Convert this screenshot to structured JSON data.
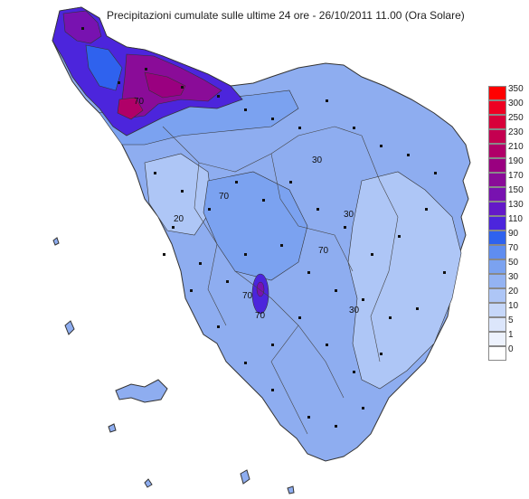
{
  "map": {
    "title": "Precipitazioni cumulate sulle ultime 24 ore - 26/10/2011 11.00 (Ora Solare)",
    "contour_labels": [
      "70",
      "20",
      "70",
      "30",
      "30",
      "70",
      "70",
      "70",
      "30"
    ]
  },
  "legend": {
    "classes": [
      {
        "label": "350",
        "color": "#ff0000"
      },
      {
        "label": "300",
        "color": "#ee0022"
      },
      {
        "label": "250",
        "color": "#d8003a"
      },
      {
        "label": "230",
        "color": "#c40050"
      },
      {
        "label": "210",
        "color": "#b00068"
      },
      {
        "label": "190",
        "color": "#9a0080"
      },
      {
        "label": "170",
        "color": "#8a0c98"
      },
      {
        "label": "150",
        "color": "#7812b0"
      },
      {
        "label": "130",
        "color": "#6419c8"
      },
      {
        "label": "110",
        "color": "#4c25dc"
      },
      {
        "label": "90",
        "color": "#2f62ee"
      },
      {
        "label": "70",
        "color": "#5f8df0"
      },
      {
        "label": "50",
        "color": "#7ba2f0"
      },
      {
        "label": "30",
        "color": "#94b3f2"
      },
      {
        "label": "20",
        "color": "#aec6f6"
      },
      {
        "label": "10",
        "color": "#c6d7f9"
      },
      {
        "label": "5",
        "color": "#dce6fb"
      },
      {
        "label": "1",
        "color": "#edf2fd"
      },
      {
        "label": "0",
        "color": "#ffffff"
      }
    ]
  }
}
